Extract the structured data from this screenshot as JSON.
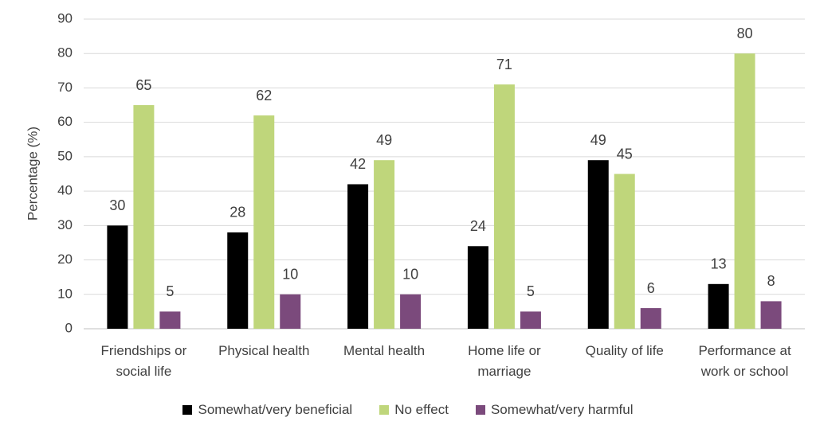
{
  "chart_data": {
    "type": "bar",
    "y_label": "Percentage (%)",
    "categories": [
      "Friendships or social life",
      "Physical health",
      "Mental health",
      "Home life or marriage",
      "Quality of life",
      "Performance at work or school"
    ],
    "series": [
      {
        "name": "Somewhat/very beneficial",
        "color": "#000000",
        "values": [
          30,
          28,
          42,
          24,
          49,
          13
        ]
      },
      {
        "name": "No effect",
        "color": "#bfd67b",
        "values": [
          65,
          62,
          49,
          71,
          45,
          80
        ]
      },
      {
        "name": "Somewhat/very harmful",
        "color": "#7b4a7c",
        "values": [
          5,
          10,
          10,
          5,
          6,
          8
        ]
      }
    ],
    "ylim": [
      0,
      90
    ],
    "yticks": [
      0,
      10,
      20,
      30,
      40,
      50,
      60,
      70,
      80,
      90
    ],
    "grid": true,
    "legend": "bottom"
  }
}
